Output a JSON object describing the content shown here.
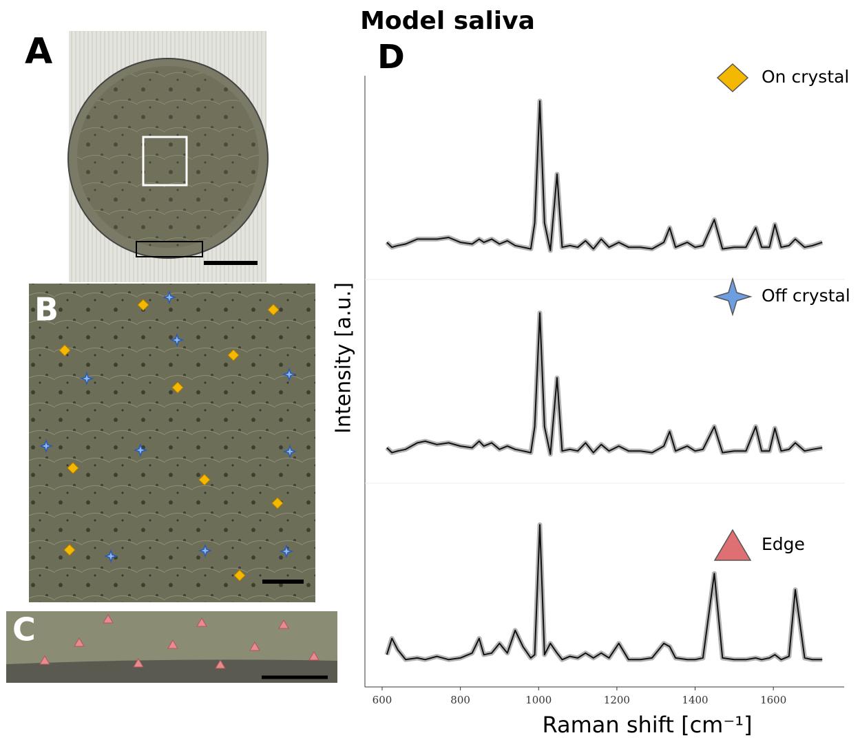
{
  "title": "Model saliva",
  "panel_labels": [
    "A",
    "B",
    "C",
    "D"
  ],
  "chart_data": {
    "type": "line",
    "xlabel": "Raman shift [cm⁻¹]",
    "ylabel": "Intensity [a.u.]",
    "xlim": [
      556,
      1781
    ],
    "xticks": [
      600,
      800,
      1000,
      1200,
      1400,
      1600
    ],
    "ylim": [
      0,
      1
    ],
    "line_color": "#111111",
    "x": [
      612,
      625,
      640,
      660,
      690,
      710,
      740,
      770,
      800,
      830,
      848,
      860,
      880,
      900,
      920,
      940,
      960,
      980,
      990,
      1003,
      1015,
      1030,
      1047,
      1060,
      1080,
      1100,
      1120,
      1140,
      1160,
      1180,
      1205,
      1230,
      1260,
      1290,
      1320,
      1335,
      1350,
      1380,
      1400,
      1420,
      1449,
      1470,
      1500,
      1530,
      1555,
      1570,
      1590,
      1604,
      1620,
      1640,
      1656,
      1680,
      1700,
      1725
    ],
    "series": [
      {
        "name": "On crystal",
        "color": "#f5b800",
        "marker": "diamond",
        "values": [
          0.08,
          0.05,
          0.06,
          0.07,
          0.1,
          0.1,
          0.1,
          0.11,
          0.08,
          0.07,
          0.1,
          0.08,
          0.1,
          0.07,
          0.09,
          0.06,
          0.05,
          0.04,
          0.2,
          0.95,
          0.2,
          0.03,
          0.5,
          0.05,
          0.06,
          0.05,
          0.09,
          0.04,
          0.1,
          0.05,
          0.08,
          0.05,
          0.05,
          0.04,
          0.08,
          0.17,
          0.05,
          0.08,
          0.05,
          0.06,
          0.22,
          0.04,
          0.05,
          0.05,
          0.17,
          0.05,
          0.05,
          0.19,
          0.05,
          0.06,
          0.1,
          0.05,
          0.06,
          0.08
        ]
      },
      {
        "name": "Off crystal",
        "color": "#6c9ee0",
        "marker": "star",
        "values": [
          0.07,
          0.04,
          0.05,
          0.06,
          0.1,
          0.11,
          0.09,
          0.1,
          0.08,
          0.07,
          0.11,
          0.08,
          0.1,
          0.06,
          0.08,
          0.06,
          0.05,
          0.04,
          0.2,
          0.9,
          0.2,
          0.03,
          0.5,
          0.05,
          0.06,
          0.05,
          0.1,
          0.04,
          0.09,
          0.05,
          0.08,
          0.05,
          0.05,
          0.04,
          0.08,
          0.17,
          0.05,
          0.08,
          0.05,
          0.06,
          0.2,
          0.04,
          0.05,
          0.05,
          0.2,
          0.05,
          0.05,
          0.19,
          0.05,
          0.06,
          0.1,
          0.05,
          0.06,
          0.07
        ]
      },
      {
        "name": "Edge",
        "color": "#de6f73",
        "marker": "triangle",
        "values": [
          0.05,
          0.15,
          0.08,
          0.02,
          0.03,
          0.02,
          0.04,
          0.02,
          0.03,
          0.06,
          0.15,
          0.05,
          0.06,
          0.12,
          0.06,
          0.2,
          0.1,
          0.03,
          0.05,
          0.85,
          0.05,
          0.12,
          0.06,
          0.02,
          0.04,
          0.03,
          0.06,
          0.03,
          0.06,
          0.03,
          0.12,
          0.02,
          0.02,
          0.03,
          0.12,
          0.1,
          0.03,
          0.02,
          0.02,
          0.03,
          0.55,
          0.03,
          0.02,
          0.02,
          0.03,
          0.02,
          0.03,
          0.05,
          0.02,
          0.04,
          0.45,
          0.03,
          0.02,
          0.02
        ]
      }
    ]
  }
}
